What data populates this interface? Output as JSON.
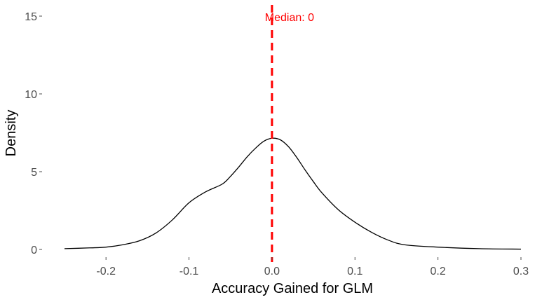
{
  "chart_data": {
    "type": "line",
    "subtype": "density",
    "xlabel": "Accuracy Gained for GLM",
    "ylabel": "Density",
    "xlim": [
      -0.25,
      0.3
    ],
    "ylim": [
      0,
      15.5
    ],
    "grid": false,
    "x_ticks": [
      -0.2,
      -0.1,
      0.0,
      0.1,
      0.2,
      0.3
    ],
    "x_tick_labels": [
      "-0.2",
      "-0.1",
      "0.0",
      "0.1",
      "0.2",
      "0.3"
    ],
    "y_ticks": [
      0,
      5,
      10,
      15
    ],
    "y_tick_labels": [
      "0",
      "5",
      "10",
      "15"
    ],
    "series": [
      {
        "color": "#000000",
        "x": [
          -0.25,
          -0.22,
          -0.2,
          -0.18,
          -0.16,
          -0.14,
          -0.12,
          -0.1,
          -0.08,
          -0.06,
          -0.05,
          -0.04,
          -0.03,
          -0.02,
          -0.01,
          0.0,
          0.01,
          0.02,
          0.03,
          0.04,
          0.05,
          0.06,
          0.08,
          0.1,
          0.12,
          0.14,
          0.16,
          0.2,
          0.25,
          0.3
        ],
        "y": [
          0.05,
          0.1,
          0.15,
          0.3,
          0.55,
          1.05,
          1.9,
          3.0,
          3.7,
          4.2,
          4.7,
          5.3,
          5.95,
          6.5,
          6.95,
          7.15,
          7.05,
          6.6,
          5.9,
          5.1,
          4.35,
          3.65,
          2.55,
          1.75,
          1.1,
          0.6,
          0.3,
          0.15,
          0.05,
          0.02
        ]
      }
    ],
    "median_line": {
      "x": 0.0,
      "color": "#ff0000",
      "style": "dashed",
      "label": "Median: 0"
    }
  }
}
